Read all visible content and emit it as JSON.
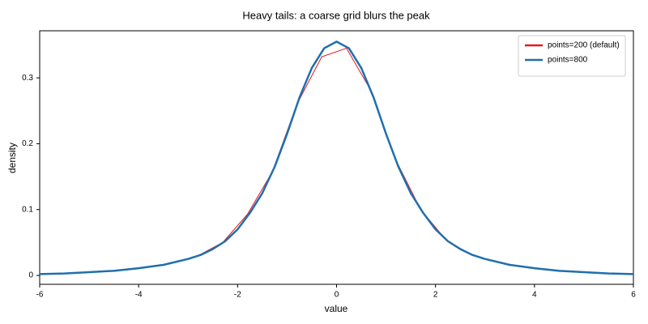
{
  "chart_data": {
    "type": "line",
    "title": "Heavy tails: a coarse grid blurs the peak",
    "x_label": "value",
    "y_label": "density",
    "xlim": [
      -6,
      6
    ],
    "ylim": [
      -0.0135,
      0.3715
    ],
    "xticks": [
      -6,
      -4,
      -2,
      0,
      2,
      4,
      6
    ],
    "yticks": [
      0,
      0.1,
      0.2,
      0.3
    ],
    "grid": false,
    "legend": "upper right",
    "series": [
      {
        "name": "points=200 (default)",
        "color": "#e41a1c",
        "width": 1,
        "x": [
          -5.8,
          -5.3,
          -4.8,
          -4.3,
          -3.8,
          -3.3,
          -2.8,
          -2.3,
          -1.8,
          -1.3,
          -0.8,
          -0.3,
          0.2,
          0.7,
          1.2,
          1.7,
          2.2,
          2.7,
          3.2,
          3.7,
          4.2,
          4.7,
          5.2,
          5.7
        ],
        "values": [
          0.0025,
          0.004,
          0.006,
          0.0085,
          0.013,
          0.019,
          0.03,
          0.05,
          0.093,
          0.157,
          0.26,
          0.332,
          0.345,
          0.28,
          0.175,
          0.1,
          0.055,
          0.032,
          0.021,
          0.014,
          0.0095,
          0.006,
          0.004,
          0.003
        ]
      },
      {
        "name": "points=800",
        "color": "#1f6fae",
        "width": 2.5,
        "x": [
          -6,
          -5.5,
          -5,
          -4.5,
          -4,
          -3.5,
          -3,
          -2.75,
          -2.5,
          -2.25,
          -2,
          -1.75,
          -1.5,
          -1.25,
          -1,
          -0.75,
          -0.5,
          -0.25,
          0,
          0.25,
          0.5,
          0.75,
          1,
          1.25,
          1.5,
          1.75,
          2,
          2.25,
          2.5,
          2.75,
          3,
          3.5,
          4,
          4.5,
          5,
          5.5,
          6
        ],
        "values": [
          0.002,
          0.003,
          0.005,
          0.007,
          0.011,
          0.016,
          0.025,
          0.031,
          0.04,
          0.052,
          0.07,
          0.095,
          0.125,
          0.165,
          0.215,
          0.27,
          0.315,
          0.345,
          0.355,
          0.345,
          0.315,
          0.27,
          0.215,
          0.165,
          0.125,
          0.095,
          0.07,
          0.052,
          0.04,
          0.031,
          0.025,
          0.016,
          0.011,
          0.007,
          0.005,
          0.003,
          0.002
        ]
      }
    ]
  }
}
